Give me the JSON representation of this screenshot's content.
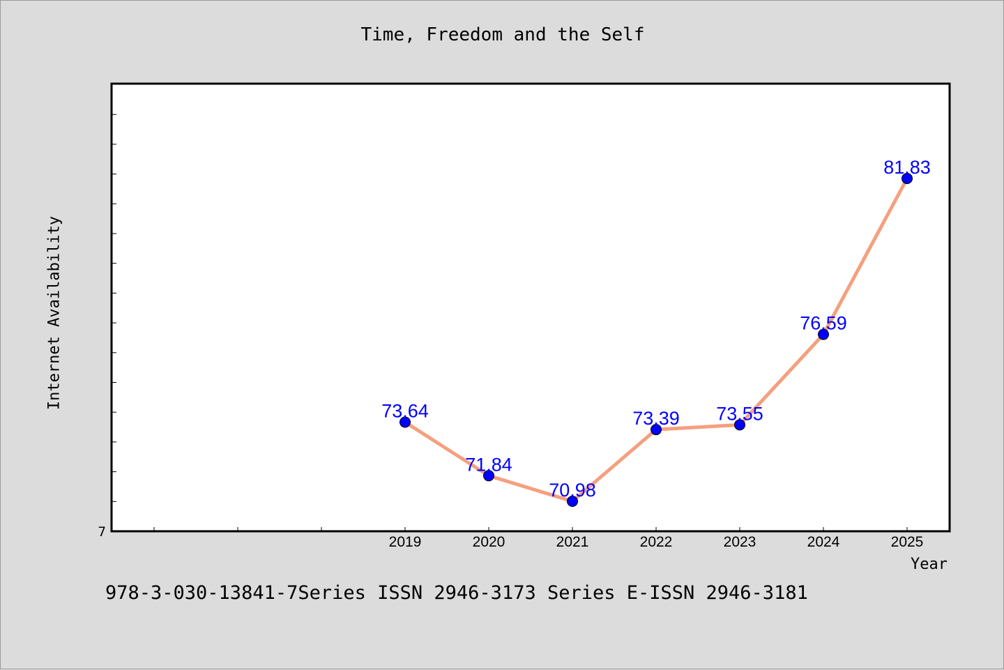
{
  "colors": {
    "background": "#dcdcdc",
    "plot_background": "#ffffff",
    "line": "#f4a07f",
    "marker": "#0000ff",
    "data_label": "#0000ff"
  },
  "footnote": "978-3-030-13841-7Series ISSN 2946-3173 Series E-ISSN 2946-3181",
  "chart_data": {
    "type": "line",
    "title": "Time, Freedom and the Self",
    "xlabel": "Year",
    "ylabel": "Internet Availability",
    "x": [
      "2019",
      "2020",
      "2021",
      "2022",
      "2023",
      "2024",
      "2025"
    ],
    "series": [
      {
        "values": [
          73.64,
          71.84,
          70.98,
          73.39,
          73.55,
          76.59,
          81.83
        ]
      }
    ],
    "data_labels": [
      "73.64",
      "71.84",
      "70.98",
      "73.39",
      "73.55",
      "76.59",
      "81.83"
    ],
    "y_tick_label": "7",
    "grid": false,
    "legend": "none"
  }
}
